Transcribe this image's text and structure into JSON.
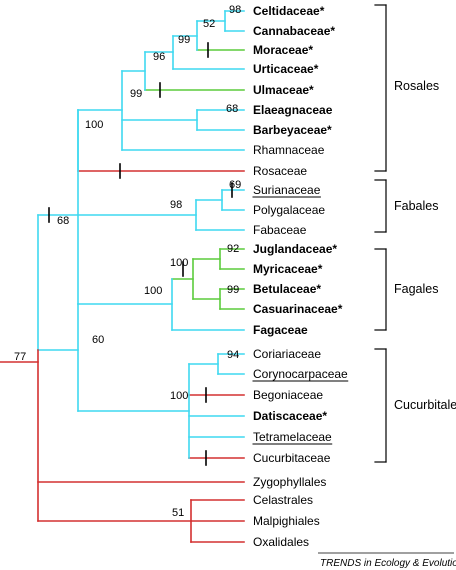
{
  "colors": {
    "cyan": "#3fd9f0",
    "green": "#5ccc3c",
    "red": "#d43030",
    "black": "#000000"
  },
  "taxa": [
    {
      "label": "Celtidaceae*",
      "bold": true,
      "underline": false
    },
    {
      "label": "Cannabaceae*",
      "bold": true,
      "underline": false
    },
    {
      "label": "Moraceae*",
      "bold": true,
      "underline": false
    },
    {
      "label": "Urticaceae*",
      "bold": true,
      "underline": false
    },
    {
      "label": "Ulmaceae*",
      "bold": true,
      "underline": false
    },
    {
      "label": "Elaeagnaceae",
      "bold": true,
      "underline": false
    },
    {
      "label": "Barbeyaceae*",
      "bold": true,
      "underline": false
    },
    {
      "label": "Rhamnaceae",
      "bold": false,
      "underline": false
    },
    {
      "label": "Rosaceae",
      "bold": false,
      "underline": false
    },
    {
      "label": "Surianaceae",
      "bold": false,
      "underline": true
    },
    {
      "label": "Polygalaceae",
      "bold": false,
      "underline": false
    },
    {
      "label": "Fabaceae",
      "bold": false,
      "underline": false
    },
    {
      "label": "Juglandaceae*",
      "bold": true,
      "underline": false
    },
    {
      "label": "Myricaceae*",
      "bold": true,
      "underline": false
    },
    {
      "label": "Betulaceae*",
      "bold": true,
      "underline": false
    },
    {
      "label": "Casuarinaceae*",
      "bold": true,
      "underline": false
    },
    {
      "label": "Fagaceae",
      "bold": true,
      "underline": false
    },
    {
      "label": "Coriariaceae",
      "bold": false,
      "underline": false
    },
    {
      "label": "Corynocarpaceae",
      "bold": false,
      "underline": true
    },
    {
      "label": "Begoniaceae",
      "bold": false,
      "underline": false
    },
    {
      "label": "Datiscaceae*",
      "bold": true,
      "underline": false
    },
    {
      "label": "Tetramelaceae",
      "bold": false,
      "underline": true
    },
    {
      "label": "Cucurbitaceae",
      "bold": false,
      "underline": false
    },
    {
      "label": "Zygophyllales",
      "bold": false,
      "underline": false
    },
    {
      "label": "Celastrales",
      "bold": false,
      "underline": false
    },
    {
      "label": "Malpighiales",
      "bold": false,
      "underline": false
    },
    {
      "label": "Oxalidales",
      "bold": false,
      "underline": false
    }
  ],
  "support_values": [
    "98",
    "52",
    "99",
    "96",
    "68",
    "99",
    "100",
    "69",
    "98",
    "68",
    "92",
    "100",
    "99",
    "100",
    "94",
    "100",
    "60",
    "77",
    "51"
  ],
  "orders": [
    "Rosales",
    "Fabales",
    "Fagales",
    "Cucurbitales"
  ],
  "credit": "TRENDS in Ecology & Evolution"
}
